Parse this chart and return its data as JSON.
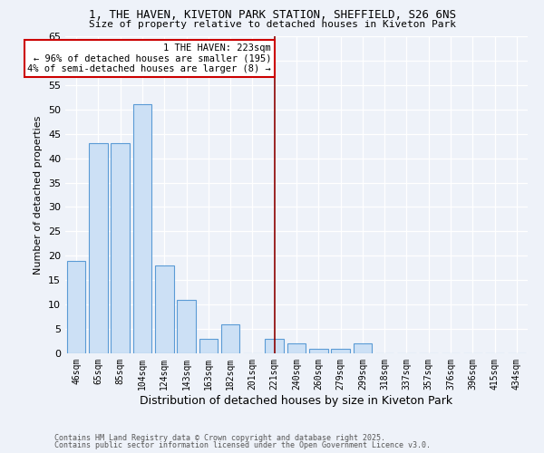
{
  "title_line1": "1, THE HAVEN, KIVETON PARK STATION, SHEFFIELD, S26 6NS",
  "title_line2": "Size of property relative to detached houses in Kiveton Park",
  "xlabel": "Distribution of detached houses by size in Kiveton Park",
  "ylabel": "Number of detached properties",
  "categories": [
    "46sqm",
    "65sqm",
    "85sqm",
    "104sqm",
    "124sqm",
    "143sqm",
    "163sqm",
    "182sqm",
    "201sqm",
    "221sqm",
    "240sqm",
    "260sqm",
    "279sqm",
    "299sqm",
    "318sqm",
    "337sqm",
    "357sqm",
    "376sqm",
    "396sqm",
    "415sqm",
    "434sqm"
  ],
  "values": [
    19,
    43,
    43,
    51,
    18,
    11,
    3,
    6,
    0,
    3,
    2,
    1,
    1,
    2,
    0,
    0,
    0,
    0,
    0,
    0,
    0
  ],
  "bar_color": "#cce0f5",
  "bar_edge_color": "#5b9bd5",
  "vline_x_index": 9,
  "vline_color": "#8b0000",
  "annotation_text": "1 THE HAVEN: 223sqm\n← 96% of detached houses are smaller (195)\n4% of semi-detached houses are larger (8) →",
  "annotation_box_color": "#ffffff",
  "annotation_edge_color": "#cc0000",
  "ylim": [
    0,
    65
  ],
  "yticks": [
    0,
    5,
    10,
    15,
    20,
    25,
    30,
    35,
    40,
    45,
    50,
    55,
    60,
    65
  ],
  "background_color": "#eef2f9",
  "footer_line1": "Contains HM Land Registry data © Crown copyright and database right 2025.",
  "footer_line2": "Contains public sector information licensed under the Open Government Licence v3.0."
}
